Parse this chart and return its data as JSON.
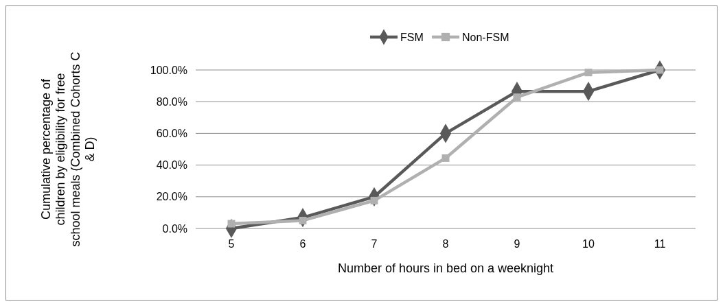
{
  "chart_data": {
    "type": "line",
    "categories": [
      "5",
      "6",
      "7",
      "8",
      "9",
      "10",
      "11"
    ],
    "series": [
      {
        "name": "FSM",
        "color": "#595959",
        "marker": "diamond",
        "values": [
          0,
          6.9,
          20,
          60,
          86.5,
          86.5,
          100
        ]
      },
      {
        "name": "Non-FSM",
        "color": "#b0b0b0",
        "marker": "square",
        "values": [
          3,
          5,
          17.6,
          44.4,
          82.8,
          98.4,
          100
        ]
      }
    ],
    "xlabel": "Number of hours in bed on a weeknight",
    "ylabel": "Cumulative percentage of children by eligibility for free school meals (Combined Cohorts C & D)",
    "ylim": [
      0,
      100
    ],
    "yticks": [
      {
        "value": 0,
        "label": "0.0%"
      },
      {
        "value": 20,
        "label": "20.0%"
      },
      {
        "value": 40,
        "label": "40.0%"
      },
      {
        "value": 60,
        "label": "60.0%"
      },
      {
        "value": 80,
        "label": "80.0%"
      },
      {
        "value": 100,
        "label": "100.0%"
      }
    ],
    "grid": "y",
    "legend": "top"
  }
}
